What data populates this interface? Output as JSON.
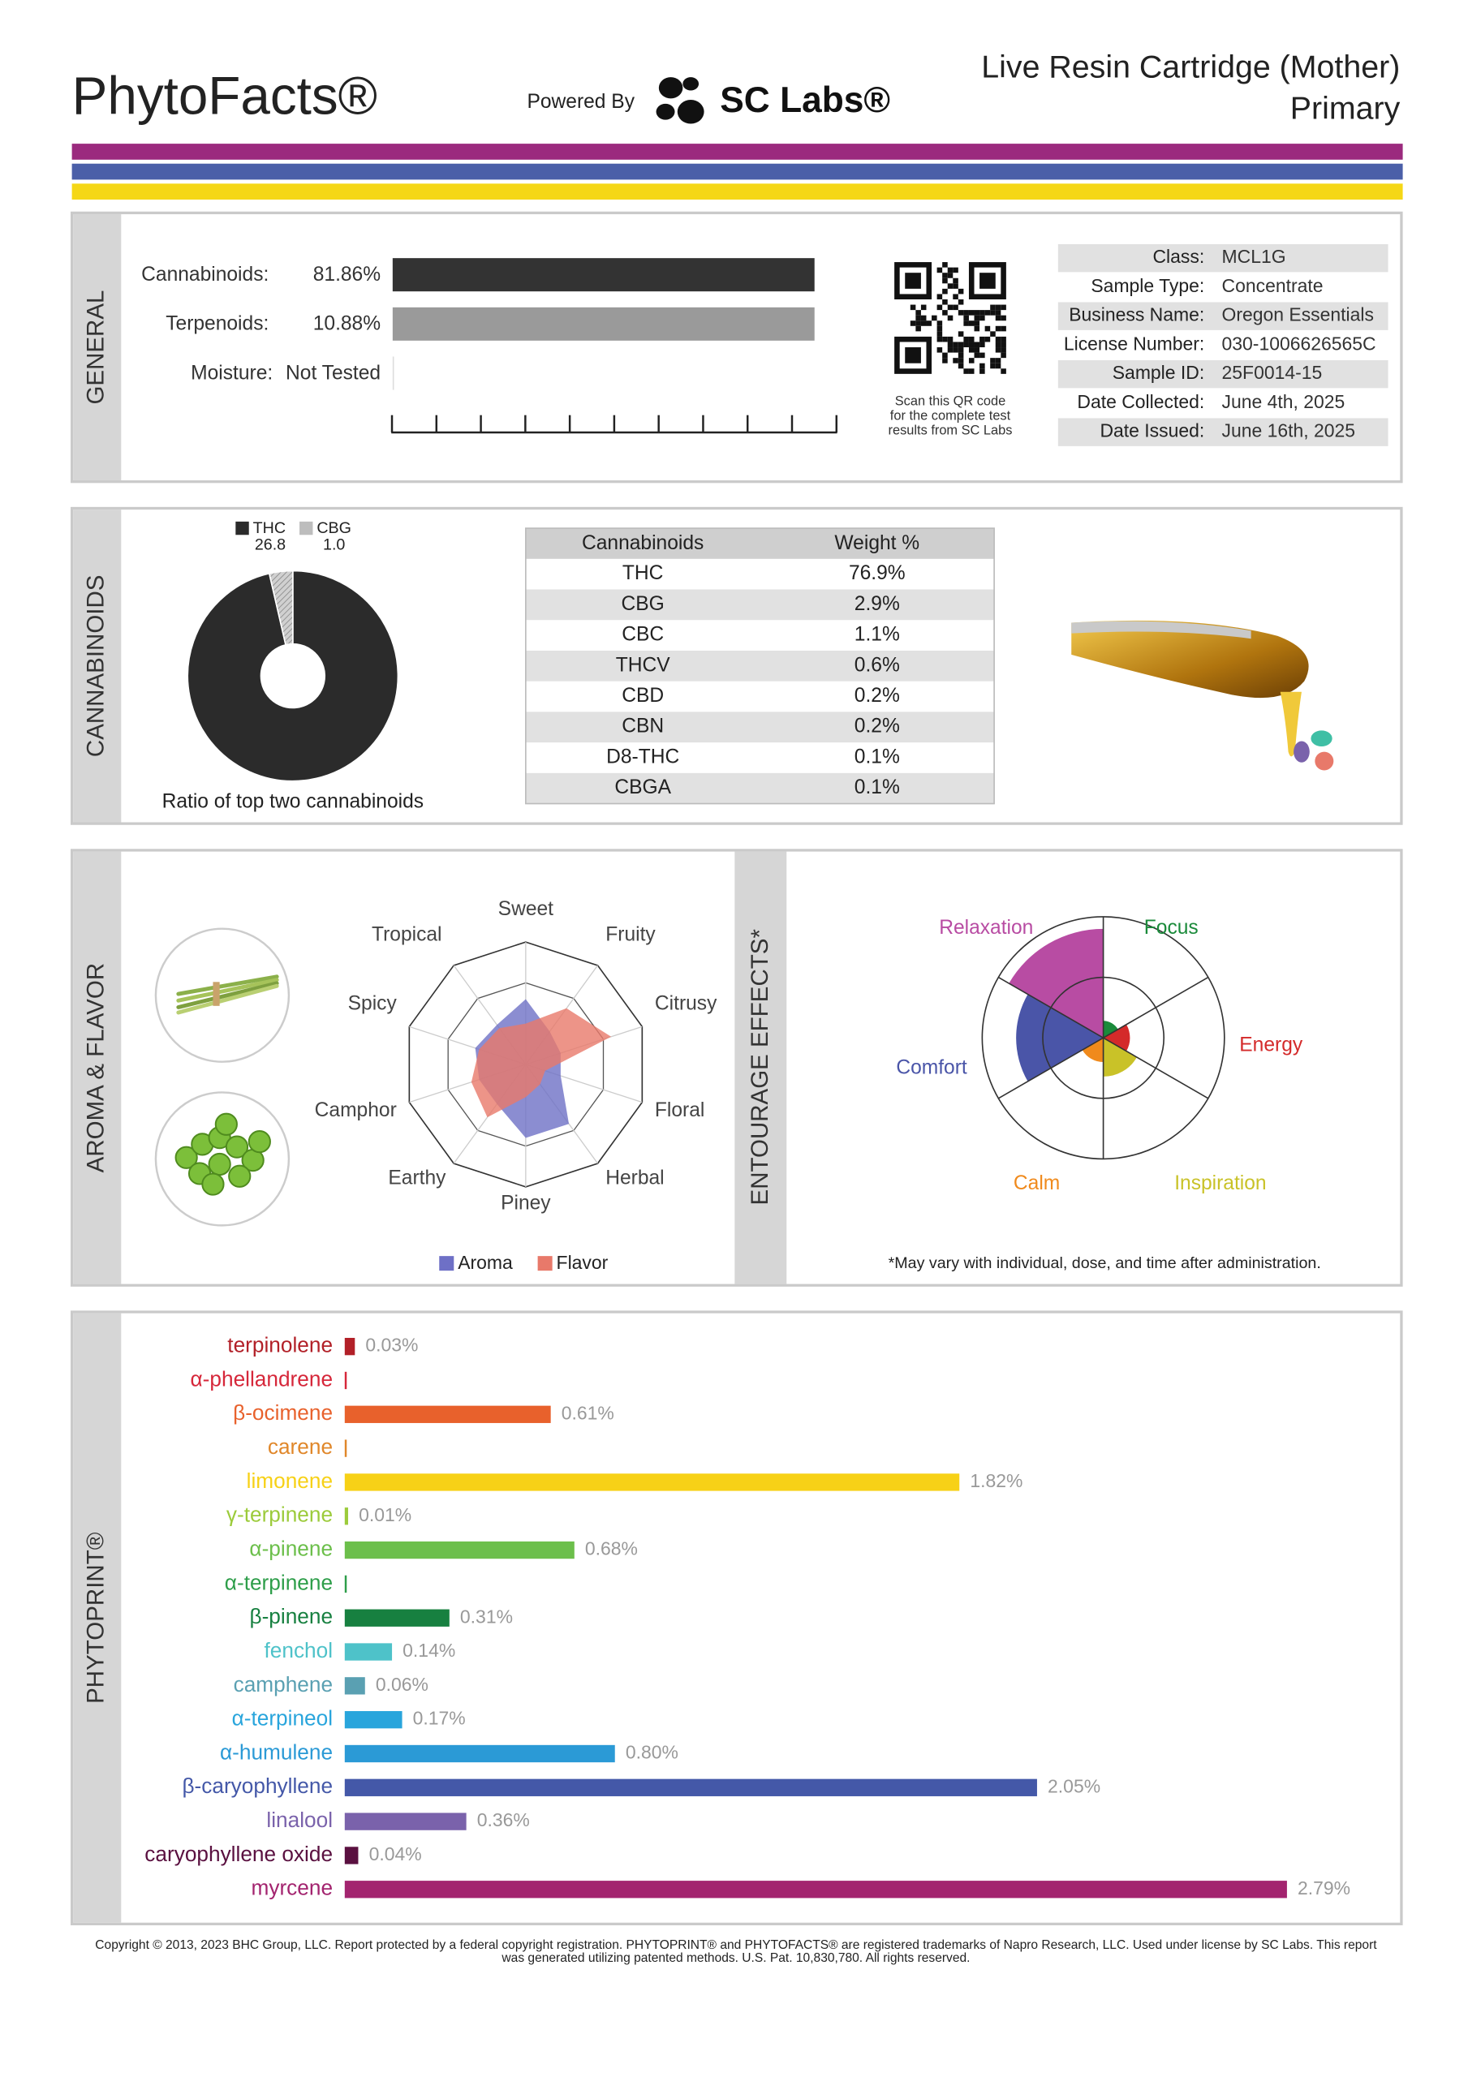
{
  "header": {
    "brand": "PhytoFacts®",
    "powered_by": "Powered By",
    "lab": "SC Labs®",
    "product": "Live Resin Cartridge (Mother)",
    "batch": "Primary"
  },
  "general": {
    "section": "GENERAL",
    "rows": [
      [
        "Cannabinoids:",
        "81.86%"
      ],
      [
        "Terpenoids:",
        "10.88%"
      ],
      [
        "Moisture:",
        "Not Tested"
      ]
    ],
    "qr_caption": [
      "Scan this QR code",
      "for the complete test",
      "results from SC Labs"
    ],
    "info": [
      [
        "Class:",
        "MCL1G"
      ],
      [
        "Sample Type:",
        "Concentrate"
      ],
      [
        "Business Name:",
        "Oregon Essentials"
      ],
      [
        "License Number:",
        "030-1006626565C"
      ],
      [
        "Sample ID:",
        "25F0014-15"
      ],
      [
        "Date Collected:",
        "June 4th, 2025"
      ],
      [
        "Date Issued:",
        "June 16th, 2025"
      ]
    ]
  },
  "cannabinoids": {
    "section": "CANNABINOIDS",
    "ratio": {
      "type": "pie",
      "categories": [
        "THC",
        "CBG"
      ],
      "values": [
        26.8,
        1.0
      ],
      "value_labels": [
        "26.8",
        "1.0"
      ],
      "colors": [
        "#2b2b2b",
        "#bdbdbd"
      ],
      "caption": "Ratio of top two cannabinoids"
    },
    "table": {
      "columns": [
        "Cannabinoids",
        "Weight %"
      ],
      "rows": [
        [
          "THC",
          "76.9%"
        ],
        [
          "CBG",
          "2.9%"
        ],
        [
          "CBC",
          "1.1%"
        ],
        [
          "THCV",
          "0.6%"
        ],
        [
          "CBD",
          "0.2%"
        ],
        [
          "CBN",
          "0.2%"
        ],
        [
          "D8-THC",
          "0.1%"
        ],
        [
          "CBGA",
          "0.1%"
        ]
      ]
    }
  },
  "aroma_flavor": {
    "section": "AROMA & FLAVOR",
    "type": "radar",
    "categories": [
      "Sweet",
      "Fruity",
      "Citrusy",
      "Floral",
      "Herbal",
      "Piney",
      "Earthy",
      "Camphor",
      "Spicy",
      "Tropical"
    ],
    "rlim": [
      0,
      3
    ],
    "series": [
      {
        "name": "Aroma",
        "color": "#6e70c6",
        "values": [
          1.6,
          1.0,
          0.9,
          0.9,
          1.8,
          1.8,
          1.2,
          1.2,
          1.3,
          1.2
        ]
      },
      {
        "name": "Flavor",
        "color": "#e8796a",
        "values": [
          1.0,
          1.7,
          2.2,
          0.5,
          0.6,
          0.8,
          1.6,
          1.4,
          1.2,
          1.1
        ]
      }
    ]
  },
  "entourage": {
    "section": "ENTOURAGE EFFECTS*",
    "type": "polar_area",
    "categories": [
      "Focus",
      "Energy",
      "Inspiration",
      "Calm",
      "Comfort",
      "Relaxation"
    ],
    "colors": [
      "#1a8a3a",
      "#d42a2a",
      "#c9c228",
      "#f08a1c",
      "#4a55a8",
      "#b84ca3"
    ],
    "values": [
      14,
      22,
      32,
      20,
      72,
      90
    ],
    "rlim": [
      0,
      100
    ],
    "note": "*May vary with individual, dose, and time after administration."
  },
  "phytoprint": {
    "section": "PHYTOPRINT®",
    "type": "bar",
    "categories": [
      "terpinolene",
      "α-phellandrene",
      "β-ocimene",
      "carene",
      "limonene",
      "γ-terpinene",
      "α-pinene",
      "α-terpinene",
      "β-pinene",
      "fenchol",
      "camphene",
      "α-terpineol",
      "α-humulene",
      "β-caryophyllene",
      "linalool",
      "caryophyllene oxide",
      "myrcene"
    ],
    "colors": [
      "#b22028",
      "#d6273a",
      "#e8612c",
      "#e0872a",
      "#f7d117",
      "#9ccb3b",
      "#6cbf4b",
      "#2e9e4a",
      "#178040",
      "#4ec2c9",
      "#5aa0b2",
      "#29a5dc",
      "#2b9ad6",
      "#4458a8",
      "#7a62ab",
      "#5a1040",
      "#a3246f"
    ],
    "values": [
      0.03,
      0,
      0.61,
      0,
      1.82,
      0.01,
      0.68,
      0,
      0.31,
      0.14,
      0.06,
      0.17,
      0.8,
      2.05,
      0.36,
      0.04,
      2.79
    ],
    "value_labels": [
      "0.03%",
      null,
      "0.61%",
      null,
      "1.82%",
      "0.01%",
      "0.68%",
      null,
      "0.31%",
      "0.14%",
      "0.06%",
      "0.17%",
      "0.80%",
      "2.05%",
      "0.36%",
      "0.04%",
      "2.79%"
    ],
    "xlim": [
      0,
      3
    ]
  },
  "footer": [
    "Copyright © 2013, 2023 BHC Group, LLC. Report protected by a federal copyright registration. PHYTOPRINT® and PHYTOFACTS® are registered trademarks of Napro Research, LLC. Used under license by SC Labs. This report",
    "was generated utilizing patented methods. U.S. Pat. 10,830,780. All rights reserved."
  ]
}
